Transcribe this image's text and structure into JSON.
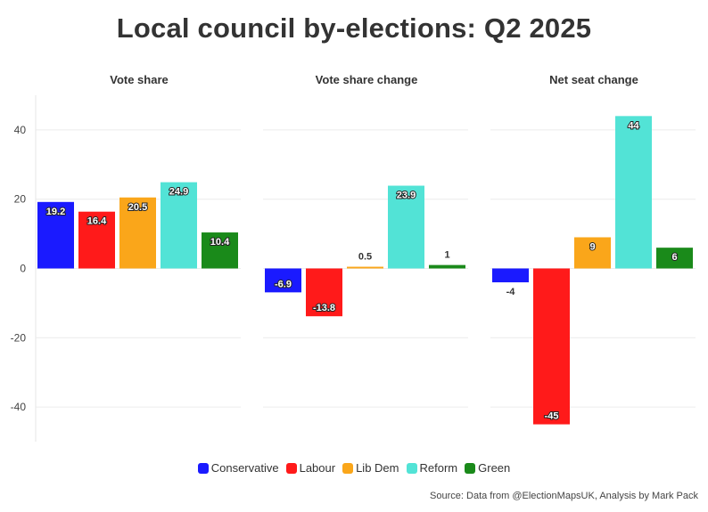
{
  "title": "Local council by-elections: Q2 2025",
  "source": "Source: Data from @ElectionMapsUK, Analysis by Mark Pack",
  "parties": [
    {
      "name": "Conservative",
      "color": "#1a1aff"
    },
    {
      "name": "Labour",
      "color": "#ff1a1a"
    },
    {
      "name": "Lib Dem",
      "color": "#faa61a"
    },
    {
      "name": "Reform",
      "color": "#52e3d6"
    },
    {
      "name": "Green",
      "color": "#1a8a1a"
    }
  ],
  "chart_data": {
    "type": "bar",
    "title": "Local council by-elections: Q2 2025",
    "categories": [
      "Conservative",
      "Labour",
      "Lib Dem",
      "Reform",
      "Green"
    ],
    "ylim": [
      -50,
      50
    ],
    "yticks": [
      40,
      20,
      0,
      -20,
      -40
    ],
    "grid": true,
    "legend_position": "bottom",
    "panels": [
      {
        "title": "Vote share",
        "values": [
          19.2,
          16.4,
          20.5,
          24.9,
          10.4
        ],
        "labels": [
          "19.2",
          "16.4",
          "20.5",
          "24.9",
          "10.4"
        ]
      },
      {
        "title": "Vote share change",
        "values": [
          -6.9,
          -13.8,
          0.5,
          23.9,
          1
        ],
        "labels": [
          "-6.9",
          "-13.8",
          "0.5",
          "23.9",
          "1"
        ]
      },
      {
        "title": "Net seat change",
        "values": [
          -4,
          -45,
          9,
          44,
          6
        ],
        "labels": [
          "-4",
          "-45",
          "9",
          "44",
          "6"
        ]
      }
    ]
  }
}
